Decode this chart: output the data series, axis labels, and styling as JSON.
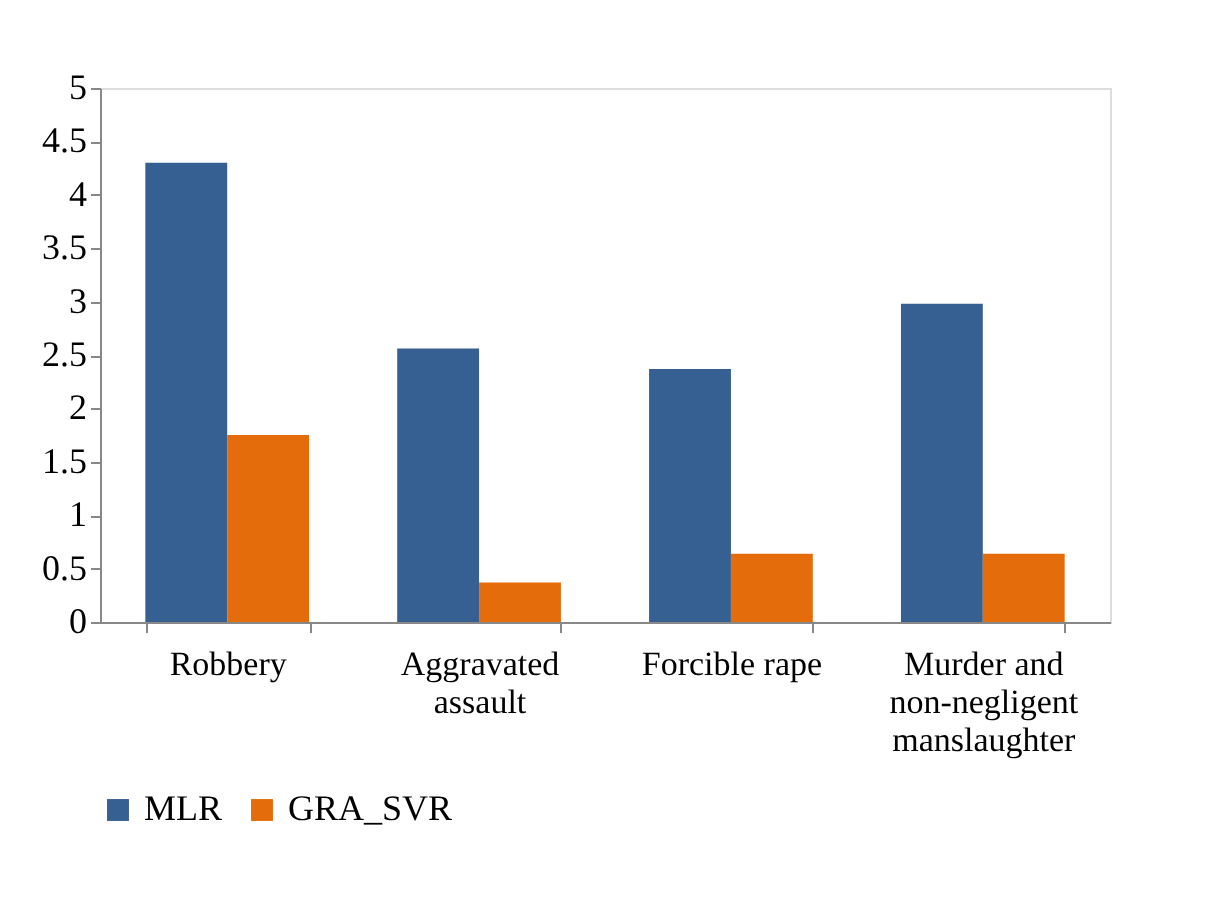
{
  "chart_data": {
    "type": "bar",
    "categories": [
      "Robbery",
      "Aggravated assault",
      "Forcible rape",
      "Murder and non-negligent manslaughter"
    ],
    "series": [
      {
        "name": "MLR",
        "color": "#365f92",
        "values": [
          4.3,
          2.56,
          2.37,
          2.98
        ]
      },
      {
        "name": "GRA_SVR",
        "color": "#e46c0a",
        "values": [
          1.75,
          0.37,
          0.64,
          0.64
        ]
      }
    ],
    "ylim": [
      0,
      5
    ],
    "yticks": [
      0,
      0.5,
      1,
      1.5,
      2,
      2.5,
      3,
      3.5,
      4,
      4.5,
      5
    ],
    "grid": false,
    "legend": "bottom"
  }
}
